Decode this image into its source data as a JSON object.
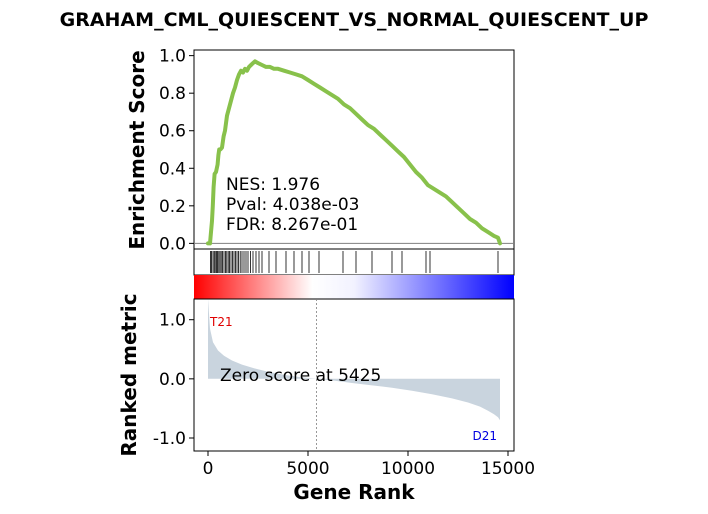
{
  "title": "GRAHAM_CML_QUIESCENT_VS_NORMAL_QUIESCENT_UP",
  "colors": {
    "es_curve": "#88c14b",
    "hit_line": "#000000",
    "ranked_fill": "#c9d4de",
    "high_label": "#e00000",
    "low_label": "#0000e0",
    "zero_line": "#7f7f7f"
  },
  "chart_data": [
    {
      "type": "line",
      "panel": "enrichment",
      "ylabel": "Enrichment Score",
      "ylim": [
        -0.03,
        1.03
      ],
      "xlim": [
        -700,
        15300
      ],
      "yticks": [
        "0.0",
        "0.2",
        "0.4",
        "0.6",
        "0.8",
        "1.0"
      ],
      "ytick_values": [
        0.0,
        0.2,
        0.4,
        0.6,
        0.8,
        1.0
      ],
      "grid": false,
      "stats": {
        "nes": "NES: 1.976",
        "pval": "Pval: 4.038e-03",
        "fdr": "FDR: 8.267e-01"
      },
      "x": [
        0,
        100,
        150,
        200,
        240,
        280,
        330,
        400,
        480,
        520,
        560,
        620,
        700,
        780,
        850,
        950,
        1050,
        1150,
        1250,
        1350,
        1450,
        1550,
        1650,
        1750,
        1850,
        1950,
        2050,
        2150,
        2250,
        2350,
        2500,
        2700,
        2900,
        3100,
        3300,
        3500,
        3800,
        4100,
        4400,
        4700,
        5000,
        5300,
        5600,
        5900,
        6200,
        6500,
        6800,
        7100,
        7400,
        7700,
        8000,
        8300,
        8600,
        8900,
        9200,
        9500,
        9800,
        10100,
        10400,
        10700,
        11000,
        11300,
        11600,
        11900,
        12200,
        12500,
        12800,
        13100,
        13400,
        13700,
        14000,
        14300,
        14500,
        14600
      ],
      "y": [
        0.0,
        0.0,
        0.06,
        0.12,
        0.2,
        0.3,
        0.37,
        0.38,
        0.42,
        0.47,
        0.5,
        0.5,
        0.51,
        0.57,
        0.6,
        0.68,
        0.72,
        0.76,
        0.8,
        0.83,
        0.87,
        0.9,
        0.92,
        0.91,
        0.93,
        0.92,
        0.94,
        0.95,
        0.96,
        0.97,
        0.96,
        0.95,
        0.94,
        0.94,
        0.93,
        0.93,
        0.92,
        0.91,
        0.9,
        0.89,
        0.87,
        0.85,
        0.83,
        0.81,
        0.79,
        0.77,
        0.74,
        0.72,
        0.69,
        0.66,
        0.63,
        0.61,
        0.58,
        0.55,
        0.52,
        0.49,
        0.46,
        0.42,
        0.38,
        0.35,
        0.31,
        0.29,
        0.27,
        0.25,
        0.22,
        0.19,
        0.16,
        0.13,
        0.11,
        0.08,
        0.06,
        0.04,
        0.03,
        0.0
      ]
    },
    {
      "type": "hits",
      "panel": "gene-set-hits",
      "positions": [
        120,
        180,
        250,
        310,
        360,
        420,
        480,
        540,
        600,
        660,
        720,
        800,
        880,
        940,
        1010,
        1080,
        1150,
        1230,
        1300,
        1380,
        1450,
        1530,
        1610,
        1700,
        1800,
        1900,
        2000,
        2120,
        2250,
        2400,
        2550,
        2700,
        3050,
        3400,
        3900,
        4300,
        4700,
        5050,
        5550,
        6750,
        7400,
        8200,
        9200,
        9700,
        10900,
        11100,
        14500
      ]
    },
    {
      "type": "area",
      "panel": "ranked-metric",
      "xlabel": "Gene Rank",
      "ylabel": "Ranked metric",
      "ylim": [
        -1.22,
        1.35
      ],
      "xlim": [
        -700,
        15300
      ],
      "yticks": [
        "1.0",
        "0.0",
        "-1.0"
      ],
      "ytick_values": [
        1.0,
        0.0,
        -1.0
      ],
      "xticks": [
        "0",
        "5000",
        "10000",
        "15000"
      ],
      "xtick_values": [
        0,
        5000,
        10000,
        15000
      ],
      "zero_score_position": 5425,
      "zero_score_label": "Zero score at 5425",
      "high_label": "T21",
      "low_label": "D21",
      "x": [
        0,
        100,
        250,
        500,
        800,
        1200,
        1700,
        2300,
        3000,
        3800,
        4600,
        5425,
        6300,
        7200,
        8200,
        9200,
        10200,
        11200,
        12200,
        13000,
        13600,
        14000,
        14300,
        14500,
        14600
      ],
      "y": [
        1.35,
        0.85,
        0.62,
        0.48,
        0.39,
        0.31,
        0.24,
        0.18,
        0.12,
        0.07,
        0.03,
        0.0,
        -0.03,
        -0.07,
        -0.11,
        -0.15,
        -0.2,
        -0.26,
        -0.33,
        -0.4,
        -0.47,
        -0.54,
        -0.6,
        -0.65,
        -0.7
      ]
    }
  ]
}
